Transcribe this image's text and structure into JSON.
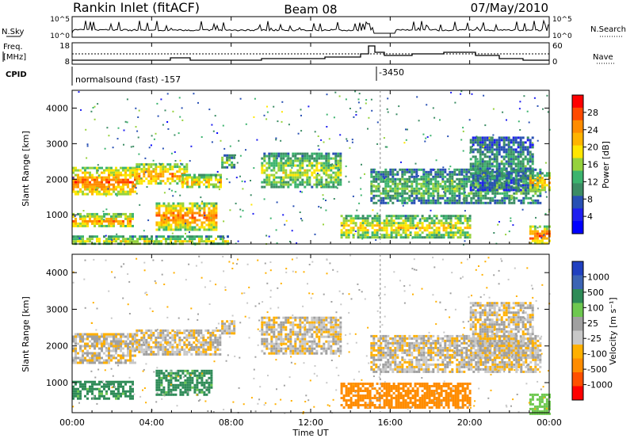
{
  "header": {
    "station": "Rankin Inlet (fitACF)",
    "beam": "Beam 08",
    "date": "07/May/2010"
  },
  "top_panels": {
    "nsky_label": "N.Sky",
    "nsky_ticks": [
      "10^5",
      "10^0"
    ],
    "nsearch_label": "N.Search",
    "nsearch_ticks": [
      "10^5",
      "10^0"
    ],
    "freq_label_line1": "Freq.",
    "freq_label_line2": "[MHz]",
    "freq_ticks": [
      "18",
      "8"
    ],
    "nave_label": "Nave",
    "nave_ticks": [
      "60",
      "0"
    ],
    "cpid_label": "CPID",
    "cpid_mode": "normalsound (fast) -157",
    "cpid_change": "-3450"
  },
  "chart_data": [
    {
      "type": "heatmap",
      "name": "power",
      "ylabel": "Slant Range [km]",
      "ylim": [
        180,
        4500
      ],
      "y_ticks": [
        1000,
        2000,
        3000,
        4000
      ],
      "xlim": [
        0,
        24
      ],
      "colorbar_label": "Power [dB]",
      "colorbar_ticks": [
        "28",
        "24",
        "20",
        "16",
        "12",
        "8",
        "4"
      ],
      "colorbar_colors": [
        "#ff0000",
        "#ff4a00",
        "#ff8c00",
        "#ffb400",
        "#ffe600",
        "#96d23c",
        "#3cb46e",
        "#3c8c64",
        "#2850b4",
        "#1e1ef0",
        "#0000ff"
      ],
      "echo_regions": [
        {
          "t0": 0.0,
          "t1": 3.2,
          "r0": 1550,
          "r1": 2350,
          "level": 0.85
        },
        {
          "t0": 3.2,
          "t1": 5.8,
          "r0": 1850,
          "r1": 2450,
          "level": 0.8
        },
        {
          "t0": 5.5,
          "t1": 7.5,
          "r0": 1750,
          "r1": 2150,
          "level": 0.7
        },
        {
          "t0": 7.5,
          "t1": 8.2,
          "r0": 2350,
          "r1": 2700,
          "level": 0.5
        },
        {
          "t0": 0.0,
          "t1": 3.0,
          "r0": 650,
          "r1": 1050,
          "level": 0.75
        },
        {
          "t0": 4.2,
          "t1": 7.3,
          "r0": 600,
          "r1": 1350,
          "level": 0.85
        },
        {
          "t0": 0.0,
          "t1": 8.0,
          "r0": 180,
          "r1": 420,
          "level": 0.6
        },
        {
          "t0": 9.5,
          "t1": 13.5,
          "r0": 1750,
          "r1": 2750,
          "level": 0.55
        },
        {
          "t0": 13.5,
          "t1": 20.0,
          "r0": 350,
          "r1": 1000,
          "level": 0.65
        },
        {
          "t0": 15.0,
          "t1": 23.5,
          "r0": 1300,
          "r1": 2300,
          "level": 0.45
        },
        {
          "t0": 20.0,
          "t1": 23.2,
          "r0": 1700,
          "r1": 3200,
          "level": 0.35
        },
        {
          "t0": 23.0,
          "t1": 24.0,
          "r0": 180,
          "r1": 700,
          "level": 0.9
        },
        {
          "t0": 23.0,
          "t1": 24.0,
          "r0": 1700,
          "r1": 2200,
          "level": 0.75
        }
      ]
    },
    {
      "type": "heatmap",
      "name": "velocity",
      "ylabel": "Slant Range [km]",
      "ylim": [
        180,
        4500
      ],
      "y_ticks": [
        1000,
        2000,
        3000,
        4000
      ],
      "xlim": [
        0,
        24
      ],
      "xlabel": "Time UT",
      "x_ticks": [
        "00:00",
        "04:00",
        "08:00",
        "12:00",
        "16:00",
        "20:00",
        "00:00"
      ],
      "colorbar_label": "Velocity [m s⁻¹]",
      "colorbar_ticks": [
        "1000",
        "500",
        "100",
        "25",
        "-25",
        "-100",
        "-500",
        "-1000"
      ],
      "colorbar_colors": [
        "#2040c0",
        "#3c64b4",
        "#2e8b57",
        "#6ec850",
        "#a0a0a0",
        "#c8c8c8",
        "#ffb000",
        "#ff8c00",
        "#ff5000",
        "#ff0000"
      ],
      "echo_regions": [
        {
          "t0": 0.0,
          "t1": 3.2,
          "r0": 1550,
          "r1": 2350,
          "value": 0
        },
        {
          "t0": 3.2,
          "t1": 7.5,
          "r0": 1800,
          "r1": 2450,
          "value": 0
        },
        {
          "t0": 7.5,
          "t1": 8.2,
          "r0": 2350,
          "r1": 2700,
          "value": 0
        },
        {
          "t0": 0.0,
          "t1": 3.0,
          "r0": 550,
          "r1": 1050,
          "value": 300
        },
        {
          "t0": 4.2,
          "t1": 7.0,
          "r0": 650,
          "r1": 1350,
          "value": 300
        },
        {
          "t0": 9.5,
          "t1": 13.5,
          "r0": 1800,
          "r1": 2800,
          "value": 0
        },
        {
          "t0": 13.5,
          "t1": 20.0,
          "r0": 350,
          "r1": 1000,
          "value": -200
        },
        {
          "t0": 15.0,
          "t1": 23.5,
          "r0": 1300,
          "r1": 2300,
          "value": 0
        },
        {
          "t0": 20.0,
          "t1": 23.2,
          "r0": 1700,
          "r1": 3200,
          "value": 0
        },
        {
          "t0": 23.0,
          "t1": 24.0,
          "r0": 180,
          "r1": 700,
          "value": 150
        }
      ]
    }
  ]
}
